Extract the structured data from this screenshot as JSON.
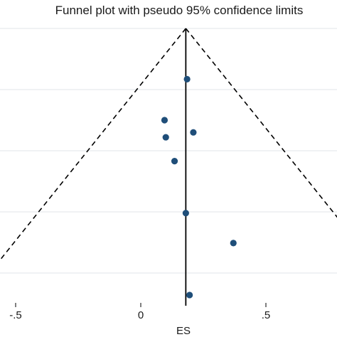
{
  "chart_data": {
    "type": "scatter",
    "title": "Funnel plot with pseudo 95% confidence limits",
    "xlabel": "ES",
    "ylabel": "",
    "x_ticks": [
      -0.5,
      0,
      0.5
    ],
    "x_tick_labels": [
      "-.5",
      "0",
      ".5"
    ],
    "xlim": [
      -0.55,
      0.77
    ],
    "y_scale": "s.e. (reversed, top = 0)",
    "ylim_se": [
      0,
      0.435
    ],
    "y_gridlines_se": [
      0,
      0.1,
      0.2,
      0.3,
      0.4
    ],
    "grid": true,
    "pooled_estimate": 0.18,
    "pseudo_95_ci_multiplier": 1.96,
    "points": [
      {
        "es": 0.185,
        "se": 0.083
      },
      {
        "es": 0.095,
        "se": 0.15
      },
      {
        "es": 0.21,
        "se": 0.17
      },
      {
        "es": 0.1,
        "se": 0.178
      },
      {
        "es": 0.135,
        "se": 0.217
      },
      {
        "es": 0.18,
        "se": 0.302
      },
      {
        "es": 0.37,
        "se": 0.351
      },
      {
        "es": 0.195,
        "se": 0.436
      }
    ],
    "colors": {
      "marker": "#1f4e79",
      "gridline": "#e6eaee",
      "line": "#000000"
    }
  }
}
